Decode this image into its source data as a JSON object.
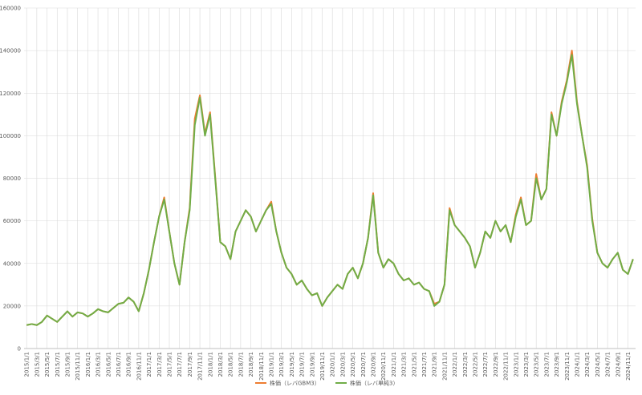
{
  "chart_data": {
    "type": "line",
    "categories": [
      "2015/1/1",
      null,
      "2015/3/1",
      null,
      "2015/5/1",
      null,
      "2015/7/1",
      null,
      "2015/9/1",
      null,
      "2015/11/1",
      null,
      "2016/1/1",
      null,
      "2016/3/1",
      null,
      "2016/5/1",
      null,
      "2016/7/1",
      null,
      "2016/9/1",
      null,
      "2016/11/1",
      null,
      "2017/1/1",
      null,
      "2017/3/1",
      null,
      "2017/5/1",
      null,
      "2017/7/1",
      null,
      "2017/9/1",
      null,
      "2017/11/1",
      null,
      "2018/1/1",
      null,
      "2018/3/1",
      null,
      "2018/5/1",
      null,
      "2018/7/1",
      null,
      "2018/9/1",
      null,
      "2018/11/1",
      null,
      "2019/1/1",
      null,
      "2019/3/1",
      null,
      "2019/5/1",
      null,
      "2019/7/1",
      null,
      "2019/9/1",
      null,
      "2019/11/1",
      null,
      "2020/1/1",
      null,
      "2020/3/1",
      null,
      "2020/5/1",
      null,
      "2020/7/1",
      null,
      "2020/9/1",
      null,
      "2020/11/1",
      null,
      "2021/1/1",
      null,
      "2021/3/1",
      null,
      "2021/5/1",
      null,
      "2021/7/1",
      null,
      "2021/9/1",
      null,
      "2021/11/1",
      null,
      "2022/1/1",
      null,
      "2022/3/1",
      null,
      "2022/5/1",
      null,
      "2022/7/1",
      null,
      "2022/9/1",
      null,
      "2022/11/1",
      null,
      "2023/1/1",
      null,
      "2023/3/1",
      null,
      "2023/5/1",
      null,
      "2023/7/1",
      null,
      "2023/9/1",
      null,
      "2023/11/1",
      null,
      "2024/1/1",
      null,
      "2024/3/1",
      null,
      "2024/5/1",
      null,
      "2024/7/1",
      null,
      "2024/9/1",
      null,
      "2024/11/1",
      null
    ],
    "series": [
      {
        "name": "株価（レバGBM3）",
        "color": "#ed7d31",
        "values": [
          11000,
          11500,
          11000,
          12500,
          15500,
          14000,
          12500,
          15000,
          17500,
          15000,
          17000,
          16500,
          15000,
          16500,
          18500,
          17500,
          17000,
          19000,
          21000,
          21500,
          24000,
          22000,
          17500,
          26000,
          37000,
          50000,
          62000,
          71000,
          55000,
          40000,
          30000,
          50000,
          66000,
          108000,
          119000,
          101000,
          111000,
          81000,
          50000,
          48000,
          42000,
          55000,
          60000,
          65000,
          62000,
          55000,
          60000,
          65000,
          69000,
          55000,
          45000,
          38000,
          35000,
          30000,
          32000,
          28000,
          25000,
          26000,
          20000,
          24000,
          27000,
          30000,
          28000,
          35000,
          38000,
          33000,
          40000,
          52000,
          73000,
          45000,
          38000,
          42000,
          40000,
          35000,
          32000,
          33000,
          30000,
          31000,
          28000,
          27000,
          21000,
          22000,
          30000,
          66000,
          58000,
          55000,
          52000,
          48000,
          38000,
          45000,
          55000,
          52000,
          60000,
          55000,
          58000,
          50000,
          63000,
          71000,
          58000,
          60000,
          82000,
          70000,
          75000,
          111000,
          100000,
          116000,
          126000,
          140000,
          116000,
          100000,
          86000,
          61000,
          45000,
          40000,
          38000,
          42000,
          45000,
          37000,
          35000,
          42000
        ]
      },
      {
        "name": "株価（レバ単純3）",
        "color": "#70ad47",
        "values": [
          11000,
          11500,
          11000,
          12500,
          15500,
          14000,
          12500,
          15000,
          17500,
          15000,
          17000,
          16500,
          15000,
          16500,
          18500,
          17500,
          17000,
          19000,
          21000,
          21500,
          24000,
          22000,
          17500,
          26000,
          37000,
          50000,
          62000,
          70000,
          55000,
          40000,
          30000,
          50000,
          65000,
          105000,
          118000,
          100000,
          110000,
          80000,
          50000,
          48000,
          42000,
          55000,
          60000,
          65000,
          62000,
          55000,
          60000,
          65000,
          68000,
          55000,
          45000,
          38000,
          35000,
          30000,
          32000,
          28000,
          25000,
          26000,
          20000,
          24000,
          27000,
          30000,
          28000,
          35000,
          38000,
          33000,
          40000,
          52000,
          72000,
          45000,
          38000,
          42000,
          40000,
          35000,
          32000,
          33000,
          30000,
          31000,
          28000,
          27000,
          20000,
          22000,
          30000,
          65000,
          58000,
          55000,
          52000,
          48000,
          38000,
          45000,
          55000,
          52000,
          60000,
          55000,
          58000,
          50000,
          62000,
          70000,
          58000,
          60000,
          80000,
          70000,
          75000,
          110000,
          100000,
          115000,
          125000,
          138000,
          115000,
          100000,
          85000,
          60000,
          45000,
          40000,
          38000,
          42000,
          45000,
          37000,
          35000,
          42000
        ]
      }
    ],
    "ylim": [
      0,
      160000
    ],
    "yticks": [
      0,
      20000,
      40000,
      60000,
      80000,
      100000,
      120000,
      140000,
      160000
    ],
    "grid": true,
    "legend": "bottom"
  }
}
